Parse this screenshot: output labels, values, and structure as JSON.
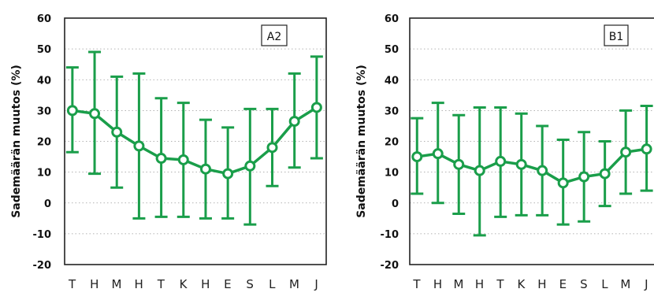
{
  "chart_data": [
    {
      "type": "line",
      "panel_label": "A2",
      "ylabel": "Sademäärän muutos (%)",
      "ylim": [
        -20,
        60
      ],
      "yticks": [
        -20,
        -10,
        0,
        10,
        20,
        30,
        40,
        50,
        60
      ],
      "grid": true,
      "categories": [
        "T",
        "H",
        "M",
        "H",
        "T",
        "K",
        "H",
        "E",
        "S",
        "L",
        "M",
        "J"
      ],
      "values": [
        30,
        29,
        23,
        18.5,
        14.5,
        14,
        11,
        9.5,
        12,
        18,
        26.5,
        31
      ],
      "upper": [
        44,
        49,
        41,
        42,
        34,
        32.5,
        27,
        24.5,
        30.5,
        30.5,
        42,
        47.5
      ],
      "lower": [
        16.5,
        9.5,
        5,
        -5,
        -4.5,
        -4.5,
        -5,
        -5,
        -7,
        5.5,
        11.5,
        14.5
      ],
      "color": "#1a9e4a"
    },
    {
      "type": "line",
      "panel_label": "B1",
      "ylabel": "Sademäärän muutos (%)",
      "ylim": [
        -20,
        60
      ],
      "yticks": [
        -20,
        -10,
        0,
        10,
        20,
        30,
        40,
        50,
        60
      ],
      "grid": true,
      "categories": [
        "T",
        "H",
        "M",
        "H",
        "T",
        "K",
        "H",
        "E",
        "S",
        "L",
        "M",
        "J"
      ],
      "values": [
        15,
        16,
        12.5,
        10.5,
        13.5,
        12.5,
        10.5,
        6.5,
        8.5,
        9.5,
        16.5,
        17.5
      ],
      "upper": [
        27.5,
        32.5,
        28.5,
        31,
        31,
        29,
        25,
        20.5,
        23,
        20,
        30,
        31.5
      ],
      "lower": [
        3,
        0,
        -3.5,
        -10.5,
        -4.5,
        -4,
        -4,
        -7,
        -6,
        -1,
        3,
        4
      ],
      "color": "#1a9e4a"
    }
  ]
}
